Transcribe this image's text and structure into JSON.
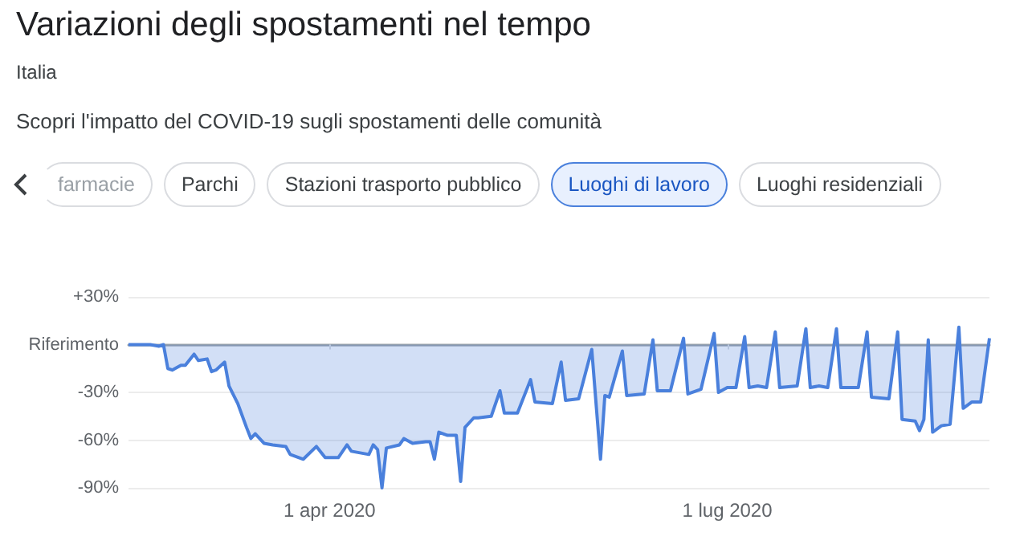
{
  "chart_data": {
    "type": "area",
    "title": "Variazioni degli spostamenti nel tempo",
    "subtitle": "Italia",
    "annotations": [
      "Scopri l'impatto del COVID-19 sugli spostamenti delle comunità",
      "farmacie",
      "Parchi",
      "Stazioni trasporto pubblico",
      "Luoghi di lavoro",
      "Luoghi residenziali"
    ],
    "x": [
      "2020-02-15",
      "2020-02-20",
      "2020-02-22",
      "2020-02-23",
      "2020-02-24",
      "2020-02-25",
      "2020-02-27",
      "2020-02-28",
      "2020-03-01",
      "2020-03-02",
      "2020-03-04",
      "2020-03-05",
      "2020-03-06",
      "2020-03-08",
      "2020-03-09",
      "2020-03-11",
      "2020-03-13",
      "2020-03-14",
      "2020-03-15",
      "2020-03-17",
      "2020-03-19",
      "2020-03-22",
      "2020-03-23",
      "2020-03-26",
      "2020-03-29",
      "2020-03-31",
      "2020-04-03",
      "2020-04-05",
      "2020-04-06",
      "2020-04-10",
      "2020-04-11",
      "2020-04-12",
      "2020-04-13",
      "2020-04-14",
      "2020-04-17",
      "2020-04-18",
      "2020-04-20",
      "2020-04-23",
      "2020-04-24",
      "2020-04-25",
      "2020-04-26",
      "2020-04-28",
      "2020-04-30",
      "2020-05-01",
      "2020-05-02",
      "2020-05-04",
      "2020-05-05",
      "2020-05-08",
      "2020-05-10",
      "2020-05-11",
      "2020-05-14",
      "2020-05-17",
      "2020-05-18",
      "2020-05-22",
      "2020-05-24",
      "2020-05-25",
      "2020-05-28",
      "2020-05-31",
      "2020-06-02",
      "2020-06-03",
      "2020-06-04",
      "2020-06-07",
      "2020-06-08",
      "2020-06-12",
      "2020-06-14",
      "2020-06-15",
      "2020-06-18",
      "2020-06-21",
      "2020-06-22",
      "2020-06-25",
      "2020-06-28",
      "2020-06-29",
      "2020-07-01",
      "2020-07-03",
      "2020-07-05",
      "2020-07-06",
      "2020-07-08",
      "2020-07-10",
      "2020-07-12",
      "2020-07-13",
      "2020-07-17",
      "2020-07-19",
      "2020-07-20",
      "2020-07-22",
      "2020-07-24",
      "2020-07-26",
      "2020-07-27",
      "2020-07-31",
      "2020-08-02",
      "2020-08-03",
      "2020-08-07",
      "2020-08-09",
      "2020-08-10",
      "2020-08-13",
      "2020-08-14",
      "2020-08-15",
      "2020-08-16",
      "2020-08-17",
      "2020-08-19",
      "2020-08-21",
      "2020-08-23",
      "2020-08-24",
      "2020-08-26",
      "2020-08-28",
      "2020-08-30"
    ],
    "series": [
      {
        "color": "#4a80dc",
        "values": [
          0,
          0,
          -1,
          0,
          -15,
          -16,
          -13,
          -13,
          -6,
          -10,
          -9,
          -17,
          -16,
          -11,
          -26,
          -37,
          -52,
          -59,
          -56,
          -62,
          -63,
          -64,
          -69,
          -72,
          -64,
          -71,
          -71,
          -63,
          -67,
          -69,
          -63,
          -66,
          -90,
          -65,
          -63,
          -59,
          -62,
          -61,
          -61,
          -72,
          -55,
          -57,
          -57,
          -86,
          -52,
          -46,
          -46,
          -45,
          -29,
          -43,
          -43,
          -22,
          -36,
          -37,
          -11,
          -35,
          -34,
          -3,
          -72,
          -32,
          -33,
          -4,
          -32,
          -31,
          3,
          -29,
          -29,
          4,
          -31,
          -28,
          7,
          -30,
          -27,
          -27,
          5,
          -27,
          -26,
          -27,
          8,
          -27,
          -26,
          10,
          -27,
          -26,
          -27,
          10,
          -27,
          -27,
          8,
          -33,
          -34,
          8,
          -47,
          -48,
          -54,
          -47,
          3,
          -55,
          -51,
          -50,
          11,
          -40,
          -36,
          -36,
          4
        ]
      }
    ],
    "xlim": [
      "2020-02-15",
      "2020-08-30"
    ],
    "xticks": [
      {
        "value": "2020-04-01",
        "label": "1 apr 2020"
      },
      {
        "value": "2020-07-01",
        "label": "1 lug 2020"
      }
    ],
    "ylim": [
      -90,
      30
    ],
    "yticks": [
      {
        "value": 30,
        "label": "+30%"
      },
      {
        "value": 0,
        "label": "Riferimento"
      },
      {
        "value": -30,
        "label": "-30%"
      },
      {
        "value": -60,
        "label": "-60%"
      },
      {
        "value": -90,
        "label": "-90%"
      }
    ],
    "grid": "y",
    "marker": "none",
    "line_style": "solid"
  }
}
